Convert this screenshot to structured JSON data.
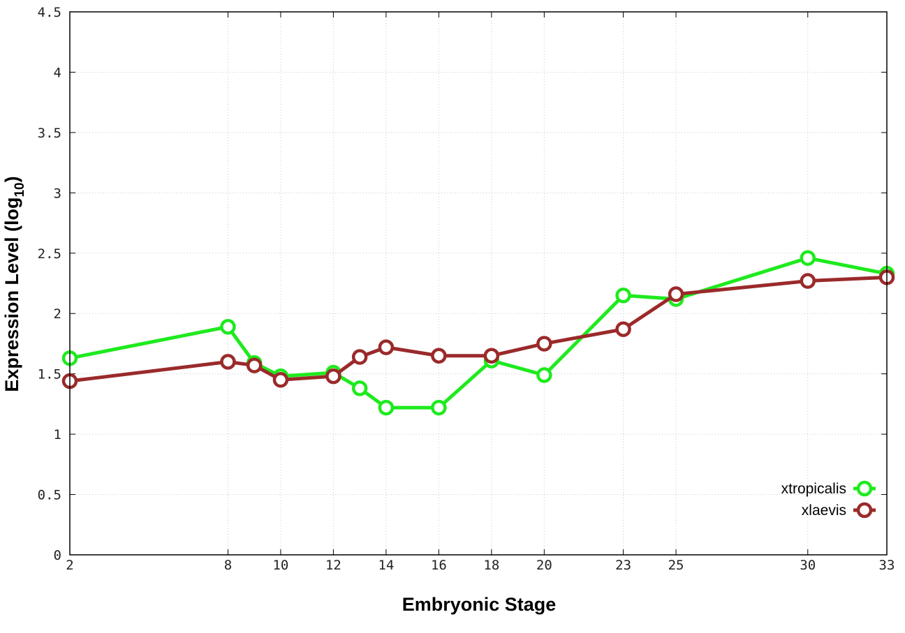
{
  "chart_data": {
    "type": "line",
    "title": "",
    "xlabel": "Embryonic Stage",
    "ylabel_main": "Expression Level (log",
    "ylabel_sub": "10",
    "ylabel_close": ")",
    "xlim": [
      2,
      33
    ],
    "ylim": [
      0,
      4.5
    ],
    "grid": true,
    "legend_position": "bottom-right",
    "x_ticks": [
      2,
      8,
      10,
      12,
      14,
      16,
      18,
      20,
      23,
      25,
      30,
      33
    ],
    "x_tick_labels": [
      "2",
      "8",
      "10",
      "12",
      "14",
      "16",
      "18",
      "20",
      "23",
      "25",
      "30",
      "33"
    ],
    "y_ticks": [
      0,
      0.5,
      1,
      1.5,
      2,
      2.5,
      3,
      3.5,
      4,
      4.5
    ],
    "y_tick_labels": [
      "0",
      "0.5",
      "1",
      "1.5",
      "2",
      "2.5",
      "3",
      "3.5",
      "4",
      "4.5"
    ],
    "x": [
      2,
      8,
      9,
      10,
      12,
      13,
      14,
      16,
      18,
      20,
      23,
      25,
      30,
      33
    ],
    "series": [
      {
        "name": "xtropicalis",
        "color": "#1eea1e",
        "values": [
          1.63,
          1.89,
          1.59,
          1.48,
          1.51,
          1.38,
          1.22,
          1.22,
          1.61,
          1.49,
          2.15,
          2.12,
          2.46,
          2.33
        ]
      },
      {
        "name": "xlaevis",
        "color": "#9a2a2a",
        "values": [
          1.44,
          1.6,
          1.57,
          1.45,
          1.48,
          1.64,
          1.72,
          1.65,
          1.65,
          1.75,
          1.87,
          2.16,
          2.27,
          2.3
        ]
      }
    ]
  }
}
